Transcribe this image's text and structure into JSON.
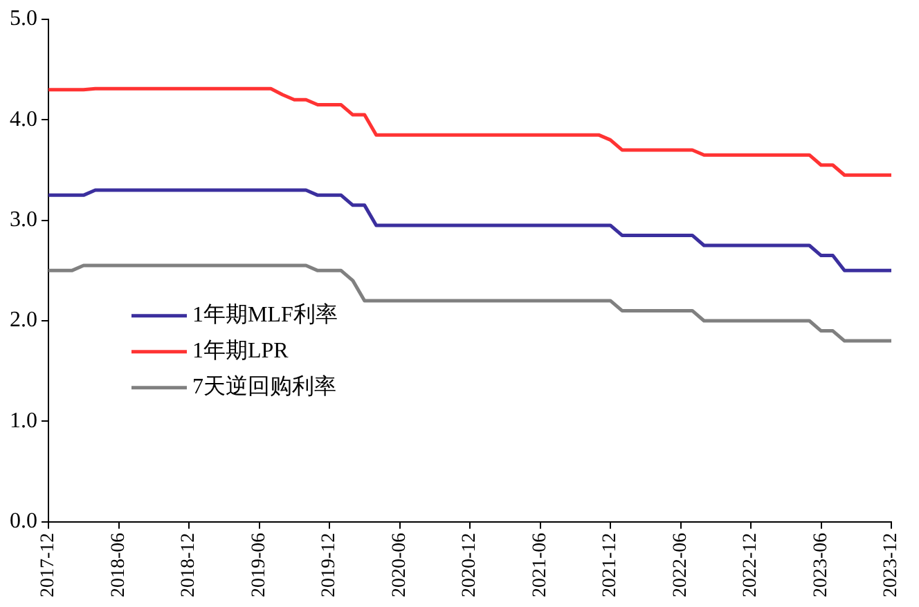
{
  "chart_data": {
    "type": "line",
    "categories": [
      "2017-12",
      null,
      null,
      null,
      null,
      null,
      "2018-06",
      null,
      null,
      null,
      null,
      null,
      "2018-12",
      null,
      null,
      null,
      null,
      null,
      "2019-06",
      null,
      null,
      null,
      null,
      null,
      "2019-12",
      null,
      null,
      null,
      null,
      null,
      "2020-06",
      null,
      null,
      null,
      null,
      null,
      "2020-12",
      null,
      null,
      null,
      null,
      null,
      "2021-06",
      null,
      null,
      null,
      null,
      null,
      "2021-12",
      null,
      null,
      null,
      null,
      null,
      "2022-06",
      null,
      null,
      null,
      null,
      null,
      "2022-12",
      null,
      null,
      null,
      null,
      null,
      "2023-06",
      null,
      null,
      null,
      null,
      null,
      "2023-12"
    ],
    "series": [
      {
        "name": "1年期MLF利率",
        "color": "#3b2f9e",
        "values": [
          3.25,
          3.25,
          3.25,
          3.25,
          3.3,
          3.3,
          3.3,
          3.3,
          3.3,
          3.3,
          3.3,
          3.3,
          3.3,
          3.3,
          3.3,
          3.3,
          3.3,
          3.3,
          3.3,
          3.3,
          3.3,
          3.3,
          3.3,
          3.25,
          3.25,
          3.25,
          3.15,
          3.15,
          2.95,
          2.95,
          2.95,
          2.95,
          2.95,
          2.95,
          2.95,
          2.95,
          2.95,
          2.95,
          2.95,
          2.95,
          2.95,
          2.95,
          2.95,
          2.95,
          2.95,
          2.95,
          2.95,
          2.95,
          2.95,
          2.85,
          2.85,
          2.85,
          2.85,
          2.85,
          2.85,
          2.85,
          2.75,
          2.75,
          2.75,
          2.75,
          2.75,
          2.75,
          2.75,
          2.75,
          2.75,
          2.75,
          2.65,
          2.65,
          2.5,
          2.5,
          2.5,
          2.5,
          2.5
        ]
      },
      {
        "name": "1年期LPR",
        "color": "#ff3333",
        "values": [
          4.3,
          4.3,
          4.3,
          4.3,
          4.31,
          4.31,
          4.31,
          4.31,
          4.31,
          4.31,
          4.31,
          4.31,
          4.31,
          4.31,
          4.31,
          4.31,
          4.31,
          4.31,
          4.31,
          4.31,
          4.25,
          4.2,
          4.2,
          4.15,
          4.15,
          4.15,
          4.05,
          4.05,
          3.85,
          3.85,
          3.85,
          3.85,
          3.85,
          3.85,
          3.85,
          3.85,
          3.85,
          3.85,
          3.85,
          3.85,
          3.85,
          3.85,
          3.85,
          3.85,
          3.85,
          3.85,
          3.85,
          3.85,
          3.8,
          3.7,
          3.7,
          3.7,
          3.7,
          3.7,
          3.7,
          3.7,
          3.65,
          3.65,
          3.65,
          3.65,
          3.65,
          3.65,
          3.65,
          3.65,
          3.65,
          3.65,
          3.55,
          3.55,
          3.45,
          3.45,
          3.45,
          3.45,
          3.45
        ]
      },
      {
        "name": "7天逆回购利率",
        "color": "#808080",
        "values": [
          2.5,
          2.5,
          2.5,
          2.55,
          2.55,
          2.55,
          2.55,
          2.55,
          2.55,
          2.55,
          2.55,
          2.55,
          2.55,
          2.55,
          2.55,
          2.55,
          2.55,
          2.55,
          2.55,
          2.55,
          2.55,
          2.55,
          2.55,
          2.5,
          2.5,
          2.5,
          2.4,
          2.2,
          2.2,
          2.2,
          2.2,
          2.2,
          2.2,
          2.2,
          2.2,
          2.2,
          2.2,
          2.2,
          2.2,
          2.2,
          2.2,
          2.2,
          2.2,
          2.2,
          2.2,
          2.2,
          2.2,
          2.2,
          2.2,
          2.1,
          2.1,
          2.1,
          2.1,
          2.1,
          2.1,
          2.1,
          2.0,
          2.0,
          2.0,
          2.0,
          2.0,
          2.0,
          2.0,
          2.0,
          2.0,
          2.0,
          1.9,
          1.9,
          1.8,
          1.8,
          1.8,
          1.8,
          1.8
        ]
      }
    ],
    "ylim": [
      0,
      5
    ],
    "yticks": [
      {
        "value": 0,
        "label": "0.0"
      },
      {
        "value": 1,
        "label": "1.0"
      },
      {
        "value": 2,
        "label": "2.0"
      },
      {
        "value": 3,
        "label": "3.0"
      },
      {
        "value": 4,
        "label": "4.0"
      },
      {
        "value": 5,
        "label": "5.0"
      }
    ],
    "legend": "left",
    "marker": "none",
    "line_style": "solid"
  }
}
